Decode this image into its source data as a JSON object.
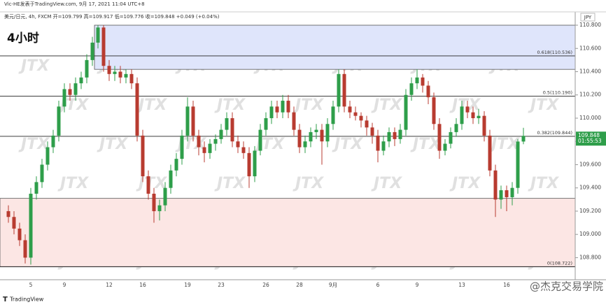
{
  "chart_data": {
    "type": "candlestick",
    "title": "4小时",
    "header": "Vic-HE发表于TradingView.com, 9月 17, 2021 11:04 UTC+8",
    "subtitle": "美元/日元, 4h, FXCM  开=109.799 高=109.917 低=109.776 收=109.848 +0.049 (+0.04%)",
    "currency": "JPY",
    "footer": "TradingView",
    "author_mark": "@杰克交易学院",
    "watermark": "JTX",
    "up_color": "#2e9e4a",
    "down_color": "#b83b30",
    "categories": [
      null,
      null,
      null,
      null,
      "5",
      null,
      null,
      null,
      null,
      null,
      "9",
      null,
      null,
      null,
      null,
      null,
      null,
      null,
      "12",
      null,
      null,
      null,
      null,
      null,
      "16",
      null,
      null,
      null,
      null,
      null,
      null,
      null,
      "19",
      null,
      null,
      null,
      null,
      null,
      "23",
      null,
      null,
      null,
      null,
      null,
      null,
      null,
      "26",
      null,
      null,
      null,
      null,
      null,
      "28",
      null,
      null,
      null,
      null,
      null,
      "9月",
      null,
      null,
      null,
      null,
      null,
      null,
      null,
      "6",
      null,
      null,
      null,
      null,
      null,
      null,
      "9",
      null,
      null,
      null,
      null,
      null,
      null,
      null,
      "13",
      null,
      null,
      null,
      null,
      null,
      null,
      null,
      "16",
      null,
      null,
      null
    ],
    "open": [
      109.2,
      109.15,
      109.05,
      108.95,
      108.8,
      109.35,
      109.45,
      109.6,
      109.75,
      109.85,
      110.1,
      110.25,
      110.2,
      110.3,
      110.35,
      110.5,
      110.65,
      110.78,
      110.45,
      110.38,
      110.4,
      110.35,
      110.38,
      110.3,
      109.85,
      109.5,
      109.35,
      109.2,
      109.25,
      109.4,
      109.55,
      109.65,
      109.85,
      110.1,
      109.85,
      109.75,
      109.7,
      109.78,
      109.82,
      109.9,
      110.0,
      109.8,
      109.75,
      109.7,
      109.5,
      109.72,
      109.9,
      110.0,
      110.1,
      110.05,
      110.15,
      110.05,
      109.9,
      109.75,
      109.8,
      109.88,
      109.9,
      109.8,
      109.95,
      110.1,
      110.38,
      110.1,
      110.05,
      110.02,
      109.98,
      109.92,
      109.85,
      109.72,
      109.8,
      109.88,
      109.82,
      109.9,
      110.2,
      110.3,
      110.35,
      110.28,
      110.18,
      109.95,
      109.72,
      109.78,
      109.88,
      109.95,
      110.1,
      110.05,
      110.0,
      110.02,
      109.85,
      109.55,
      109.3,
      109.38,
      109.32,
      109.4,
      109.799
    ],
    "high": [
      109.25,
      109.2,
      109.1,
      109.0,
      109.4,
      109.5,
      109.65,
      109.8,
      109.9,
      110.15,
      110.3,
      110.3,
      110.35,
      110.4,
      110.55,
      110.7,
      110.8,
      110.8,
      110.5,
      110.45,
      110.45,
      110.42,
      110.42,
      110.35,
      109.9,
      109.55,
      109.4,
      109.3,
      109.45,
      109.6,
      109.7,
      109.9,
      110.18,
      110.15,
      109.9,
      109.8,
      109.82,
      109.86,
      109.95,
      110.05,
      110.05,
      109.85,
      109.8,
      109.75,
      109.76,
      109.95,
      110.05,
      110.15,
      110.15,
      110.2,
      110.2,
      110.1,
      109.95,
      109.85,
      109.92,
      109.95,
      109.95,
      110.0,
      110.15,
      110.42,
      110.42,
      110.15,
      110.1,
      110.05,
      110.02,
      109.96,
      109.9,
      109.85,
      109.92,
      109.92,
      109.95,
      110.25,
      110.35,
      110.42,
      110.38,
      110.32,
      110.22,
      110.0,
      109.82,
      109.92,
      110.0,
      110.15,
      110.15,
      110.1,
      110.08,
      110.06,
      109.9,
      109.6,
      109.42,
      109.42,
      109.45,
      109.82,
      109.917
    ],
    "low": [
      109.1,
      109.0,
      108.9,
      108.75,
      108.74,
      109.3,
      109.4,
      109.55,
      109.7,
      109.8,
      110.05,
      110.15,
      110.15,
      110.25,
      110.3,
      110.45,
      110.6,
      110.4,
      110.32,
      110.32,
      110.3,
      110.3,
      110.25,
      109.8,
      109.45,
      109.3,
      109.1,
      109.12,
      109.2,
      109.35,
      109.5,
      109.6,
      109.8,
      109.8,
      109.68,
      109.62,
      109.65,
      109.72,
      109.78,
      109.85,
      109.75,
      109.7,
      109.65,
      109.4,
      109.45,
      109.68,
      109.85,
      109.95,
      110.0,
      110.0,
      110.0,
      109.85,
      109.7,
      109.7,
      109.75,
      109.82,
      109.6,
      109.75,
      109.9,
      110.05,
      110.05,
      110.0,
      109.98,
      109.92,
      109.85,
      109.78,
      109.62,
      109.68,
      109.75,
      109.76,
      109.78,
      109.85,
      110.15,
      110.25,
      110.22,
      110.12,
      109.9,
      109.65,
      109.68,
      109.74,
      109.84,
      109.9,
      110.0,
      109.95,
      109.95,
      109.8,
      109.5,
      109.15,
      109.22,
      109.2,
      109.25,
      109.35,
      109.776
    ],
    "close": [
      109.15,
      109.05,
      108.95,
      108.8,
      109.35,
      109.45,
      109.6,
      109.75,
      109.85,
      110.1,
      110.25,
      110.2,
      110.3,
      110.35,
      110.5,
      110.65,
      110.78,
      110.45,
      110.38,
      110.4,
      110.35,
      110.38,
      110.3,
      109.85,
      109.5,
      109.35,
      109.2,
      109.25,
      109.4,
      109.55,
      109.65,
      109.85,
      110.1,
      109.85,
      109.75,
      109.7,
      109.78,
      109.82,
      109.9,
      110.0,
      109.8,
      109.75,
      109.7,
      109.5,
      109.72,
      109.9,
      110.0,
      110.1,
      110.05,
      110.15,
      110.05,
      109.9,
      109.75,
      109.8,
      109.88,
      109.9,
      109.8,
      109.95,
      110.1,
      110.38,
      110.1,
      110.05,
      110.02,
      109.98,
      109.92,
      109.85,
      109.72,
      109.8,
      109.88,
      109.82,
      109.9,
      110.2,
      110.3,
      110.35,
      110.28,
      110.18,
      109.95,
      109.72,
      109.78,
      109.88,
      109.95,
      110.1,
      110.05,
      110.0,
      110.02,
      109.85,
      109.55,
      109.3,
      109.38,
      109.32,
      109.4,
      109.799,
      109.848
    ],
    "ylim": [
      108.61,
      110.9
    ],
    "yticks": [
      {
        "value": 108.8,
        "label": "108.800"
      },
      {
        "value": 109.0,
        "label": "109.000"
      },
      {
        "value": 109.2,
        "label": "109.200"
      },
      {
        "value": 109.4,
        "label": "109.400"
      },
      {
        "value": 109.6,
        "label": "109.600"
      },
      {
        "value": 109.8,
        "label": "109.800"
      },
      {
        "value": 110.0,
        "label": "110.000"
      },
      {
        "value": 110.2,
        "label": "110.200"
      },
      {
        "value": 110.4,
        "label": "110.400"
      },
      {
        "value": 110.6,
        "label": "110.600"
      },
      {
        "value": 110.8,
        "label": "110.800"
      }
    ],
    "levels": [
      {
        "value": 110.536,
        "label": "0.618(110.536)"
      },
      {
        "value": 110.19,
        "label": "0.5(110.190)"
      },
      {
        "value": 109.844,
        "label": "0.382(109.844)"
      },
      {
        "value": 108.722,
        "label": "0(108.722)"
      }
    ],
    "zones": [
      {
        "from": 110.42,
        "to": 110.8,
        "color": "#dfe5fb"
      },
      {
        "from": 108.722,
        "to": 109.31,
        "color": "#fce6e4"
      }
    ],
    "last_price": 109.848,
    "countdown": "01:55:53"
  }
}
